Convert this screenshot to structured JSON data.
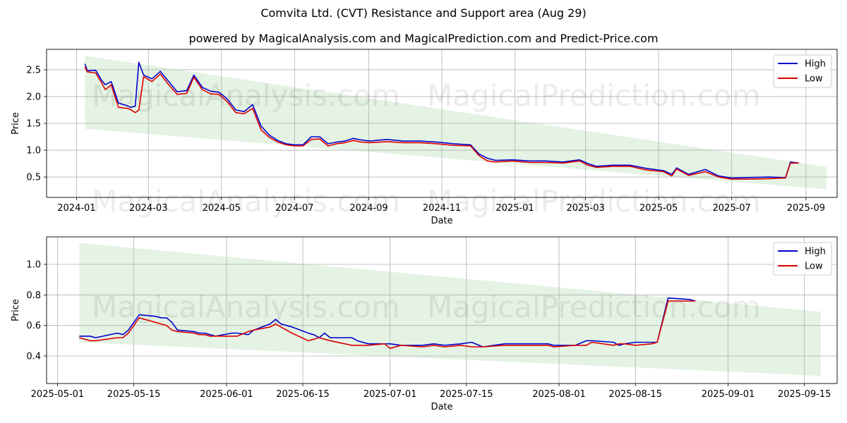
{
  "title": "Comvita Ltd. (CVT) Resistance and Support area (Aug 29)",
  "subtitle": "powered by MagicalAnalysis.com and MagicalPrediction.com and Predict-Price.com",
  "watermarks": [
    "MagicalAnalysis.com",
    "MagicalPrediction.com"
  ],
  "colors": {
    "high": "#0000cc",
    "low": "#dd0000",
    "band": "#2ca02c",
    "grid": "#b0b0b0"
  },
  "chart_data": [
    {
      "type": "line",
      "xlabel": "Date",
      "ylabel": "Price",
      "x_ticks": [
        "2024-01",
        "2024-03",
        "2024-05",
        "2024-07",
        "2024-09",
        "2024-11",
        "2025-01",
        "2025-03",
        "2025-05",
        "2025-07",
        "2025-09"
      ],
      "x_tick_dates": [
        "2024-01-01",
        "2024-03-01",
        "2024-05-01",
        "2024-07-01",
        "2024-09-01",
        "2024-11-01",
        "2025-01-01",
        "2025-03-01",
        "2025-05-01",
        "2025-07-01",
        "2025-09-01"
      ],
      "y_ticks": [
        "0.5",
        "1.0",
        "1.5",
        "2.0",
        "2.5"
      ],
      "xlim": [
        "2023-12-07",
        "2025-09-27"
      ],
      "ylim": [
        0.12,
        2.88
      ],
      "grid": true,
      "legend": "top-right",
      "band": {
        "start": "2024-01-08",
        "end": "2025-09-18",
        "upper": [
          2.76,
          0.69
        ],
        "lower": [
          1.4,
          0.27
        ]
      },
      "series": [
        {
          "name": "High",
          "x": [
            "2024-01-08",
            "2024-01-10",
            "2024-01-17",
            "2024-01-22",
            "2024-01-25",
            "2024-01-30",
            "2024-02-05",
            "2024-02-12",
            "2024-02-15",
            "2024-02-19",
            "2024-02-22",
            "2024-02-26",
            "2024-03-04",
            "2024-03-11",
            "2024-03-18",
            "2024-03-25",
            "2024-04-02",
            "2024-04-08",
            "2024-04-15",
            "2024-04-22",
            "2024-04-29",
            "2024-05-06",
            "2024-05-13",
            "2024-05-20",
            "2024-05-27",
            "2024-06-03",
            "2024-06-10",
            "2024-06-17",
            "2024-06-24",
            "2024-07-01",
            "2024-07-08",
            "2024-07-15",
            "2024-07-22",
            "2024-07-29",
            "2024-08-05",
            "2024-08-12",
            "2024-08-19",
            "2024-08-26",
            "2024-09-02",
            "2024-09-16",
            "2024-09-30",
            "2024-10-14",
            "2024-10-28",
            "2024-11-11",
            "2024-11-25",
            "2024-12-02",
            "2024-12-09",
            "2024-12-16",
            "2024-12-30",
            "2025-01-13",
            "2025-01-27",
            "2025-02-10",
            "2025-02-24",
            "2025-03-03",
            "2025-03-10",
            "2025-03-24",
            "2025-04-07",
            "2025-04-21",
            "2025-05-05",
            "2025-05-12",
            "2025-05-16",
            "2025-05-26",
            "2025-06-09",
            "2025-06-20",
            "2025-07-01",
            "2025-07-15",
            "2025-08-01",
            "2025-08-12",
            "2025-08-15",
            "2025-08-19",
            "2025-08-26"
          ],
          "values": [
            2.61,
            2.48,
            2.49,
            2.3,
            2.22,
            2.28,
            1.88,
            1.83,
            1.8,
            1.82,
            2.64,
            2.4,
            2.33,
            2.47,
            2.28,
            2.09,
            2.11,
            2.4,
            2.17,
            2.1,
            2.08,
            1.95,
            1.75,
            1.72,
            1.85,
            1.45,
            1.28,
            1.18,
            1.12,
            1.1,
            1.1,
            1.25,
            1.25,
            1.12,
            1.15,
            1.17,
            1.22,
            1.19,
            1.17,
            1.2,
            1.17,
            1.17,
            1.15,
            1.12,
            1.1,
            0.93,
            0.85,
            0.81,
            0.82,
            0.8,
            0.8,
            0.78,
            0.82,
            0.75,
            0.7,
            0.72,
            0.72,
            0.66,
            0.62,
            0.55,
            0.67,
            0.55,
            0.64,
            0.52,
            0.48,
            0.49,
            0.5,
            0.49,
            0.49,
            0.78,
            0.76
          ]
        },
        {
          "name": "Low",
          "x": [
            "2024-01-08",
            "2024-01-10",
            "2024-01-17",
            "2024-01-22",
            "2024-01-25",
            "2024-01-30",
            "2024-02-05",
            "2024-02-12",
            "2024-02-15",
            "2024-02-19",
            "2024-02-22",
            "2024-02-26",
            "2024-03-04",
            "2024-03-11",
            "2024-03-18",
            "2024-03-25",
            "2024-04-02",
            "2024-04-08",
            "2024-04-15",
            "2024-04-22",
            "2024-04-29",
            "2024-05-06",
            "2024-05-13",
            "2024-05-20",
            "2024-05-27",
            "2024-06-03",
            "2024-06-10",
            "2024-06-17",
            "2024-06-24",
            "2024-07-01",
            "2024-07-08",
            "2024-07-15",
            "2024-07-22",
            "2024-07-29",
            "2024-08-05",
            "2024-08-12",
            "2024-08-19",
            "2024-08-26",
            "2024-09-02",
            "2024-09-16",
            "2024-09-30",
            "2024-10-14",
            "2024-10-28",
            "2024-11-11",
            "2024-11-25",
            "2024-12-02",
            "2024-12-09",
            "2024-12-16",
            "2024-12-30",
            "2025-01-13",
            "2025-01-27",
            "2025-02-10",
            "2025-02-24",
            "2025-03-03",
            "2025-03-10",
            "2025-03-24",
            "2025-04-07",
            "2025-04-21",
            "2025-05-05",
            "2025-05-12",
            "2025-05-16",
            "2025-05-26",
            "2025-06-09",
            "2025-06-20",
            "2025-07-01",
            "2025-07-15",
            "2025-08-01",
            "2025-08-12",
            "2025-08-15",
            "2025-08-19",
            "2025-08-26"
          ],
          "values": [
            2.55,
            2.46,
            2.44,
            2.25,
            2.13,
            2.22,
            1.8,
            1.78,
            1.76,
            1.7,
            1.75,
            2.37,
            2.28,
            2.42,
            2.22,
            2.04,
            2.06,
            2.36,
            2.13,
            2.05,
            2.04,
            1.9,
            1.7,
            1.68,
            1.78,
            1.38,
            1.24,
            1.15,
            1.1,
            1.08,
            1.08,
            1.2,
            1.21,
            1.08,
            1.12,
            1.14,
            1.18,
            1.15,
            1.14,
            1.16,
            1.14,
            1.14,
            1.12,
            1.09,
            1.08,
            0.9,
            0.8,
            0.78,
            0.8,
            0.77,
            0.77,
            0.76,
            0.8,
            0.72,
            0.68,
            0.7,
            0.7,
            0.63,
            0.6,
            0.52,
            0.65,
            0.53,
            0.6,
            0.5,
            0.46,
            0.46,
            0.47,
            0.48,
            0.48,
            0.76,
            0.76
          ]
        }
      ]
    },
    {
      "type": "line",
      "xlabel": "Date",
      "ylabel": "Price",
      "x_ticks": [
        "2025-05-01",
        "2025-05-15",
        "2025-06-01",
        "2025-06-15",
        "2025-07-01",
        "2025-07-15",
        "2025-08-01",
        "2025-08-15",
        "2025-09-01",
        "2025-09-15"
      ],
      "y_ticks": [
        "0.4",
        "0.6",
        "0.8",
        "1.0"
      ],
      "xlim": [
        "2025-04-29",
        "2025-09-21"
      ],
      "ylim": [
        0.22,
        1.18
      ],
      "grid": true,
      "legend": "top-right",
      "band": {
        "start": "2025-05-05",
        "end": "2025-09-18",
        "upper": [
          1.14,
          0.69
        ],
        "lower": [
          0.49,
          0.27
        ]
      },
      "series": [
        {
          "name": "High",
          "x": [
            "2025-05-05",
            "2025-05-07",
            "2025-05-08",
            "2025-05-12",
            "2025-05-13",
            "2025-05-14",
            "2025-05-16",
            "2025-05-19",
            "2025-05-20",
            "2025-05-21",
            "2025-05-22",
            "2025-05-23",
            "2025-05-26",
            "2025-05-27",
            "2025-05-28",
            "2025-05-29",
            "2025-05-30",
            "2025-06-02",
            "2025-06-03",
            "2025-06-05",
            "2025-06-06",
            "2025-06-09",
            "2025-06-10",
            "2025-06-11",
            "2025-06-13",
            "2025-06-16",
            "2025-06-17",
            "2025-06-18",
            "2025-06-19",
            "2025-06-20",
            "2025-06-24",
            "2025-06-25",
            "2025-06-27",
            "2025-06-30",
            "2025-07-01",
            "2025-07-03",
            "2025-07-07",
            "2025-07-09",
            "2025-07-11",
            "2025-07-14",
            "2025-07-16",
            "2025-07-18",
            "2025-07-22",
            "2025-07-25",
            "2025-07-30",
            "2025-07-31",
            "2025-08-04",
            "2025-08-06",
            "2025-08-07",
            "2025-08-11",
            "2025-08-12",
            "2025-08-13",
            "2025-08-15",
            "2025-08-18",
            "2025-08-19",
            "2025-08-21",
            "2025-08-25",
            "2025-08-26"
          ],
          "values": [
            0.53,
            0.53,
            0.52,
            0.55,
            0.54,
            0.57,
            0.67,
            0.66,
            0.65,
            0.65,
            0.62,
            0.57,
            0.56,
            0.55,
            0.55,
            0.54,
            0.53,
            0.55,
            0.55,
            0.54,
            0.57,
            0.61,
            0.64,
            0.61,
            0.59,
            0.55,
            0.54,
            0.52,
            0.55,
            0.52,
            0.52,
            0.5,
            0.48,
            0.48,
            0.48,
            0.47,
            0.47,
            0.48,
            0.47,
            0.48,
            0.49,
            0.46,
            0.48,
            0.48,
            0.48,
            0.47,
            0.47,
            0.5,
            0.5,
            0.49,
            0.47,
            0.48,
            0.49,
            0.49,
            0.49,
            0.78,
            0.77,
            0.76
          ]
        },
        {
          "name": "Low",
          "x": [
            "2025-05-05",
            "2025-05-07",
            "2025-05-08",
            "2025-05-12",
            "2025-05-13",
            "2025-05-14",
            "2025-05-16",
            "2025-05-19",
            "2025-05-20",
            "2025-05-21",
            "2025-05-22",
            "2025-05-23",
            "2025-05-26",
            "2025-05-27",
            "2025-05-28",
            "2025-05-29",
            "2025-05-30",
            "2025-06-02",
            "2025-06-03",
            "2025-06-05",
            "2025-06-06",
            "2025-06-09",
            "2025-06-10",
            "2025-06-11",
            "2025-06-13",
            "2025-06-16",
            "2025-06-17",
            "2025-06-18",
            "2025-06-19",
            "2025-06-20",
            "2025-06-24",
            "2025-06-25",
            "2025-06-27",
            "2025-06-30",
            "2025-07-01",
            "2025-07-03",
            "2025-07-07",
            "2025-07-09",
            "2025-07-11",
            "2025-07-14",
            "2025-07-16",
            "2025-07-18",
            "2025-07-22",
            "2025-07-25",
            "2025-07-30",
            "2025-07-31",
            "2025-08-04",
            "2025-08-06",
            "2025-08-07",
            "2025-08-11",
            "2025-08-12",
            "2025-08-13",
            "2025-08-15",
            "2025-08-18",
            "2025-08-19",
            "2025-08-21",
            "2025-08-25",
            "2025-08-26"
          ],
          "values": [
            0.52,
            0.5,
            0.5,
            0.52,
            0.52,
            0.55,
            0.65,
            0.62,
            0.61,
            0.6,
            0.57,
            0.56,
            0.55,
            0.54,
            0.54,
            0.53,
            0.53,
            0.53,
            0.53,
            0.56,
            0.57,
            0.59,
            0.61,
            0.59,
            0.55,
            0.5,
            0.51,
            0.52,
            0.51,
            0.5,
            0.47,
            0.47,
            0.47,
            0.48,
            0.45,
            0.47,
            0.46,
            0.47,
            0.46,
            0.47,
            0.46,
            0.46,
            0.47,
            0.47,
            0.47,
            0.46,
            0.47,
            0.47,
            0.49,
            0.47,
            0.48,
            0.48,
            0.47,
            0.48,
            0.49,
            0.76,
            0.76,
            0.76
          ]
        }
      ]
    }
  ]
}
